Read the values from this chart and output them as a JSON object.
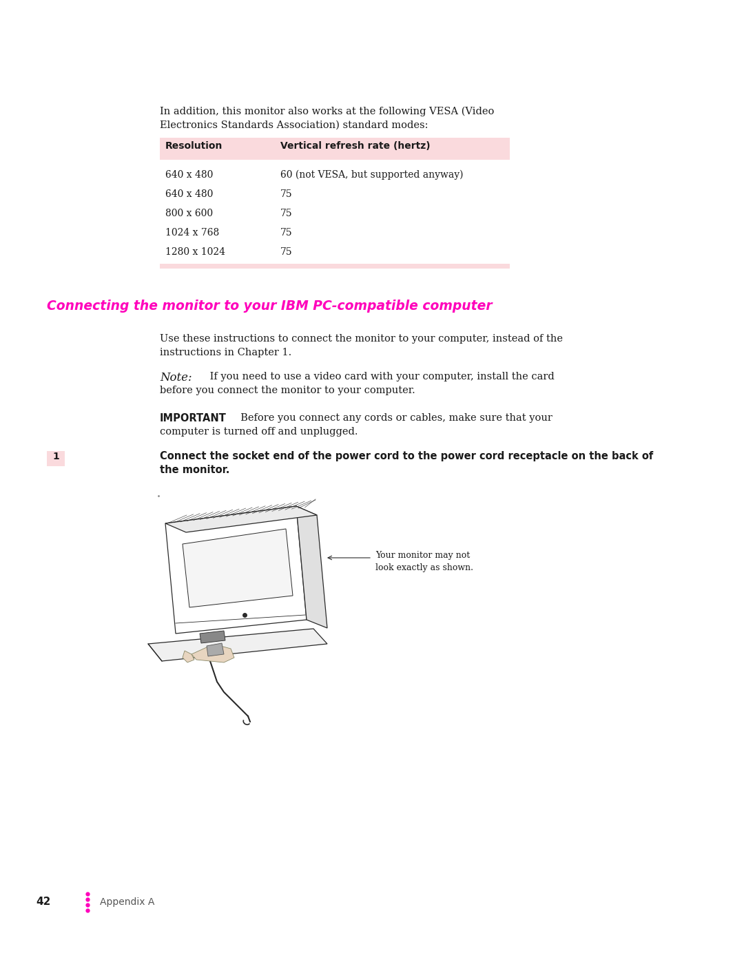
{
  "page_bg": "#ffffff",
  "text_color": "#1a1a1a",
  "intro_text_line1": "In addition, this monitor also works at the following VESA (Video",
  "intro_text_line2": "Electronics Standards Association) standard modes:",
  "table_header_bg": "#fadadd",
  "table_col1_header": "Resolution",
  "table_col2_header": "Vertical refresh rate (hertz)",
  "table_rows": [
    [
      "640 x 480",
      "60 (not VESA, but supported anyway)"
    ],
    [
      "640 x 480",
      "75"
    ],
    [
      "800 x 600",
      "75"
    ],
    [
      "1024 x 768",
      "75"
    ],
    [
      "1280 x 1024",
      "75"
    ]
  ],
  "section_title": "Connecting the monitor to your IBM PC-compatible computer",
  "section_title_color": "#ff00bb",
  "body_text_1_line1": "Use these instructions to connect the monitor to your computer, instead of the",
  "body_text_1_line2": "instructions in Chapter 1.",
  "note_label": "Note:",
  "note_rest_line1": " If you need to use a video card with your computer, install the card",
  "note_rest_line2": "before you connect the monitor to your computer.",
  "important_label": "IMPORTANT",
  "important_rest_line1": "  Before you connect any cords or cables, make sure that your",
  "important_rest_line2": "computer is turned off and unplugged.",
  "step_num": "1",
  "step_num_bg": "#fadadd",
  "step_text_line1": "Connect the socket end of the power cord to the power cord receptacle on the back of",
  "step_text_line2": "the monitor.",
  "callout_text_line1": "Your monitor may not",
  "callout_text_line2": "look exactly as shown.",
  "footer_page": "42",
  "footer_text": "Appendix A",
  "footer_dot_color": "#ff00bb"
}
